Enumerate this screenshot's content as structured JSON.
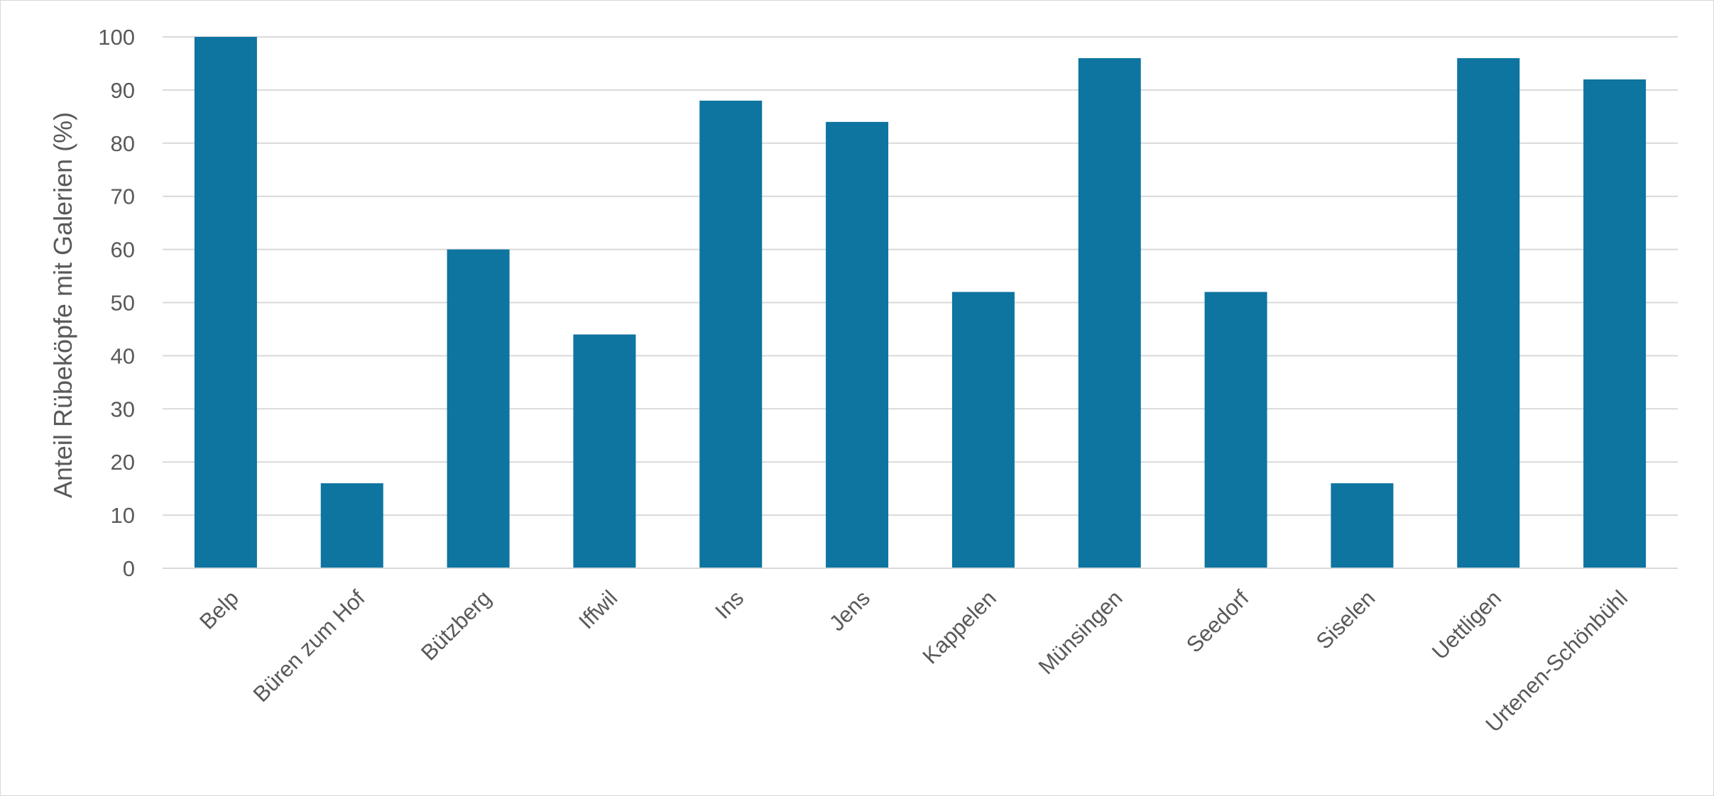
{
  "chart_data": {
    "type": "bar",
    "categories": [
      "Belp",
      "Büren zum Hof",
      "Bützberg",
      "Iffwil",
      "Ins",
      "Jens",
      "Kappelen",
      "Münsingen",
      "Seedorf",
      "Siselen",
      "Uettligen",
      "Urtenen-Schönbühl"
    ],
    "values": [
      100,
      16,
      60,
      44,
      88,
      84,
      52,
      96,
      52,
      16,
      96,
      92
    ],
    "ylabel": "Anteil  Rübeköpfe mit Galerien (%)",
    "ylim": [
      0,
      100
    ],
    "yticks": [
      0,
      10,
      20,
      30,
      40,
      50,
      60,
      70,
      80,
      90,
      100
    ],
    "grid": true,
    "bar_color": "#0e74a0"
  }
}
